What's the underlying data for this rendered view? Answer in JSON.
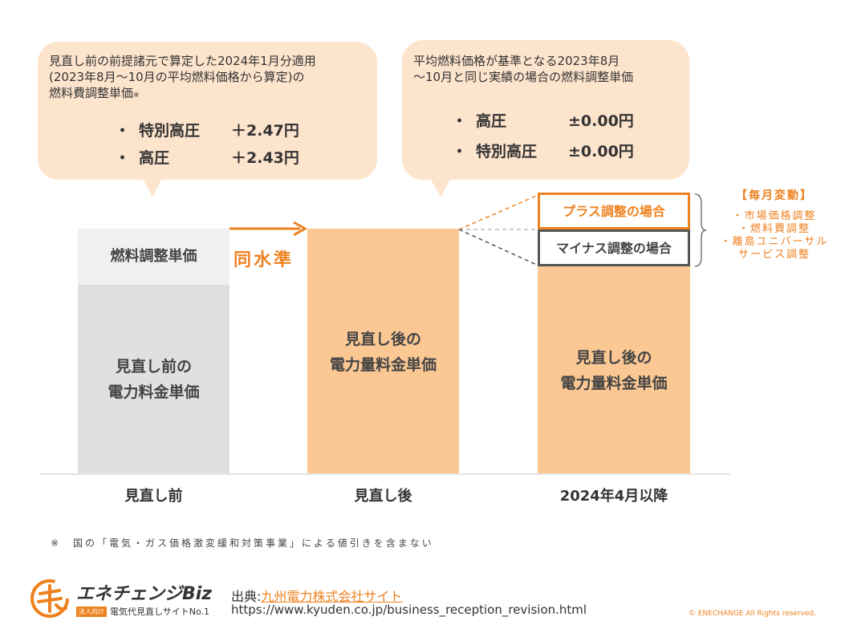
{
  "bubble_left": {
    "line1": "見直し前の前提諸元で算定した2024年1月分適用",
    "line2": "(2023年8月～10月の平均燃料価格から算定)の",
    "line3": "燃料費調整単価",
    "mark": "※",
    "items": [
      {
        "name": "特別高圧",
        "value": "＋2.47円"
      },
      {
        "name": "高圧",
        "value": "＋2.43円"
      }
    ]
  },
  "bubble_right": {
    "line1": "平均燃料価格が基準となる2023年8月",
    "line2": "～10月と同じ実績の場合の燃料調整単価",
    "items": [
      {
        "name": "高圧",
        "value": "±0.00円"
      },
      {
        "name": "特別高圧",
        "value": "±0.00円"
      }
    ]
  },
  "bullet": "・",
  "bars": {
    "before_top": "燃料調整単価",
    "before_body_1": "見直し前の",
    "before_body_2": "電力料金単価",
    "same_level": "同水準",
    "after_1": "見直し後の",
    "after_2": "電力量料金単価",
    "apr_1": "見直し後の",
    "apr_2": "電力量料金単価",
    "plus_case": "プラス調整の場合",
    "minus_case": "マイナス調整の場合"
  },
  "categories": [
    "見直し前",
    "見直し後",
    "2024年4月以降"
  ],
  "side_note": {
    "title": "【毎月変動】",
    "items": [
      "・市場価格調整",
      "・燃料費調整",
      "・離島ユニバーサル",
      "サービス調整"
    ]
  },
  "footnote": "※　国の「電気・ガス価格激変緩和対策事業」による値引きを含まない",
  "logo": {
    "name": "エネチェンジBiz",
    "badge": "法人向け",
    "tagline": "電気代見直しサイトNo.1"
  },
  "source": {
    "label": "出典:",
    "link": "九州電力株式会社サイト",
    "url": "https://www.kyuden.co.jp/business_reception_revision.html"
  },
  "copyright": "© ENECHANGE All Rights reserved.",
  "colors": {
    "orange": "#ef8220",
    "bar_orange": "#fbc894",
    "bubble": "#fde4cd",
    "gray_light": "#f0f0f0",
    "gray_dark": "#e0e0e0",
    "box_dark": "#555555"
  }
}
